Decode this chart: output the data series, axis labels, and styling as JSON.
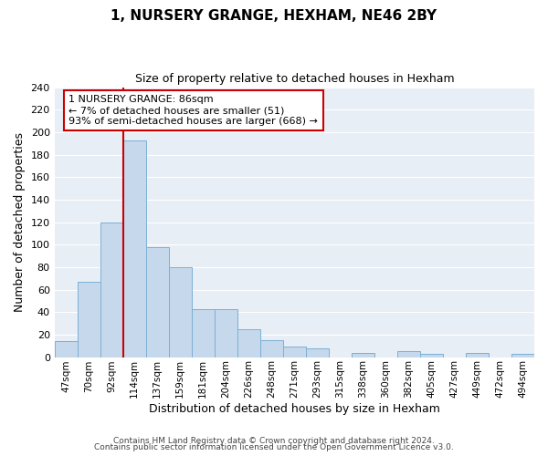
{
  "title": "1, NURSERY GRANGE, HEXHAM, NE46 2BY",
  "subtitle": "Size of property relative to detached houses in Hexham",
  "xlabel": "Distribution of detached houses by size in Hexham",
  "ylabel": "Number of detached properties",
  "bar_labels": [
    "47sqm",
    "70sqm",
    "92sqm",
    "114sqm",
    "137sqm",
    "159sqm",
    "181sqm",
    "204sqm",
    "226sqm",
    "248sqm",
    "271sqm",
    "293sqm",
    "315sqm",
    "338sqm",
    "360sqm",
    "382sqm",
    "405sqm",
    "427sqm",
    "449sqm",
    "472sqm",
    "494sqm"
  ],
  "bar_values": [
    14,
    67,
    120,
    193,
    98,
    80,
    43,
    43,
    25,
    15,
    9,
    8,
    0,
    4,
    0,
    5,
    3,
    0,
    4,
    0,
    3
  ],
  "bar_color": "#c6d9ec",
  "bar_edge_color": "#7bafd4",
  "ylim": [
    0,
    240
  ],
  "yticks": [
    0,
    20,
    40,
    60,
    80,
    100,
    120,
    140,
    160,
    180,
    200,
    220,
    240
  ],
  "property_line_x": 2.5,
  "annotation_title": "1 NURSERY GRANGE: 86sqm",
  "annotation_line1": "← 7% of detached houses are smaller (51)",
  "annotation_line2": "93% of semi-detached houses are larger (668) →",
  "annotation_box_color": "#ffffff",
  "annotation_box_edge_color": "#cc0000",
  "property_line_color": "#cc0000",
  "footer1": "Contains HM Land Registry data © Crown copyright and database right 2024.",
  "footer2": "Contains public sector information licensed under the Open Government Licence v3.0.",
  "background_color": "#ffffff",
  "plot_bg_color": "#e8eef5",
  "grid_color": "#ffffff"
}
